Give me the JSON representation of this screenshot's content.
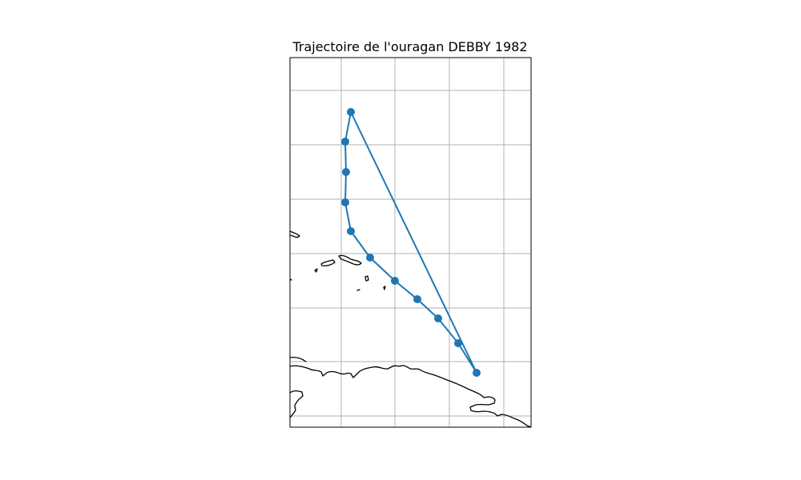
{
  "map": {
    "title": "Trajectoire de l'ouragan DEBBY 1982",
    "track_color": "#1f77b4",
    "coastline_color": "#000000",
    "grid_color": "#b0b0b0",
    "frame_color": "#000000",
    "track_point_count": 11
  }
}
